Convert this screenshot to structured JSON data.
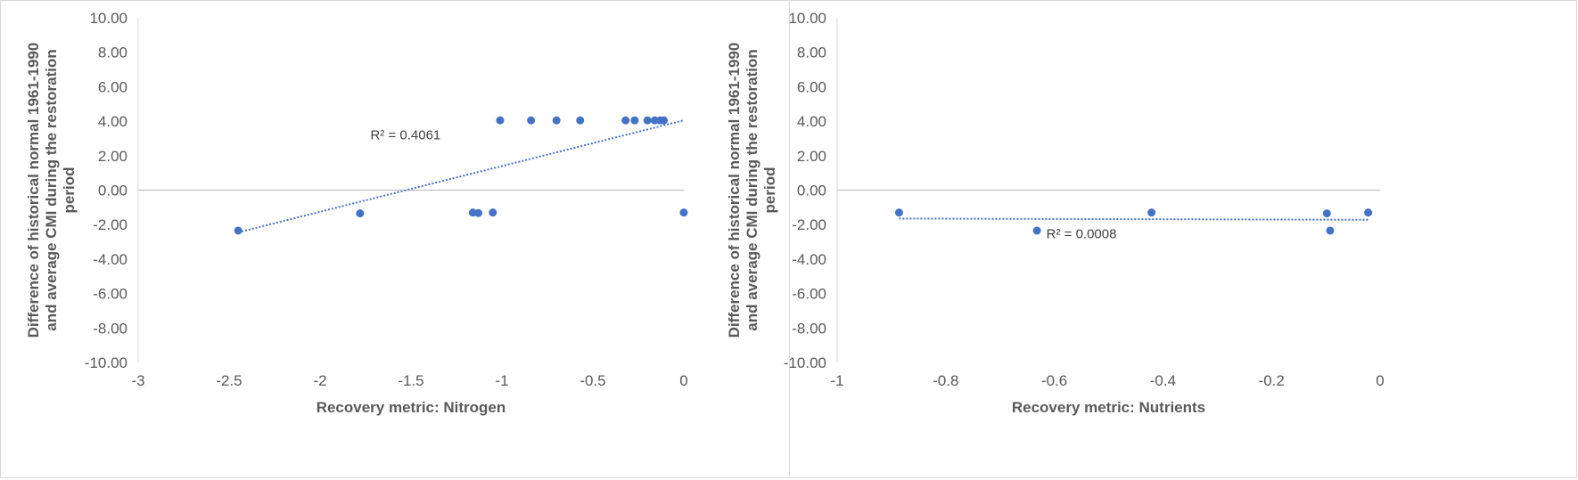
{
  "chart_data": [
    {
      "type": "scatter",
      "xlabel": "Recovery metric: Nitrogen",
      "ylabel_lines": [
        "Difference of historical normal 1961-1990",
        "and average  CMI during the restoration",
        "period"
      ],
      "xlim": [
        -3,
        0
      ],
      "ylim": [
        -10,
        10
      ],
      "x_ticks": [
        "-3",
        "-2.5",
        "-2",
        "-1.5",
        "-1",
        "-0.5",
        "0"
      ],
      "y_ticks": [
        "10.00",
        "8.00",
        "6.00",
        "4.00",
        "2.00",
        "0.00",
        "-2.00",
        "-4.00",
        "-6.00",
        "-8.00",
        "-10.00"
      ],
      "points": [
        {
          "x": -2.45,
          "y": -2.35
        },
        {
          "x": -1.78,
          "y": -1.35
        },
        {
          "x": -1.16,
          "y": -1.3
        },
        {
          "x": -1.13,
          "y": -1.33
        },
        {
          "x": -1.05,
          "y": -1.3
        },
        {
          "x": -1.01,
          "y": 4.05
        },
        {
          "x": -0.84,
          "y": 4.05
        },
        {
          "x": -0.7,
          "y": 4.05
        },
        {
          "x": -0.57,
          "y": 4.05
        },
        {
          "x": -0.32,
          "y": 4.05
        },
        {
          "x": -0.27,
          "y": 4.05
        },
        {
          "x": -0.2,
          "y": 4.05
        },
        {
          "x": -0.16,
          "y": 4.05
        },
        {
          "x": -0.13,
          "y": 4.05
        },
        {
          "x": -0.11,
          "y": 4.05
        },
        {
          "x": 0.0,
          "y": -1.3
        }
      ],
      "trendline": {
        "x1": -2.45,
        "y1": -2.45,
        "x2": 0.0,
        "y2": 4.05
      },
      "r2_label": "R² = 0.4061",
      "r2_pos": {
        "x": -1.53,
        "y": 2.95
      },
      "grid": false,
      "zero_line": true,
      "colors": {
        "points": "#4472c4",
        "trend": "#4472c4",
        "zero": "#bfbfbf"
      }
    },
    {
      "type": "scatter",
      "xlabel": "Recovery metric: Nutrients",
      "ylabel_lines": [
        "Difference of historical normal 1961-1990",
        "and average  CMI during the restoration",
        "period"
      ],
      "xlim": [
        -1,
        0
      ],
      "ylim": [
        -10,
        10
      ],
      "x_ticks": [
        "-1",
        "-0.8",
        "-0.6",
        "-0.4",
        "-0.2",
        "0"
      ],
      "y_ticks": [
        "10.00",
        "8.00",
        "6.00",
        "4.00",
        "2.00",
        "0.00",
        "-2.00",
        "-4.00",
        "-6.00",
        "-8.00",
        "-10.00"
      ],
      "points": [
        {
          "x": -0.886,
          "y": -1.3
        },
        {
          "x": -0.632,
          "y": -2.35
        },
        {
          "x": -0.421,
          "y": -1.3
        },
        {
          "x": -0.098,
          "y": -1.35
        },
        {
          "x": -0.092,
          "y": -2.35
        },
        {
          "x": -0.022,
          "y": -1.3
        }
      ],
      "trendline": {
        "x1": -0.886,
        "y1": -1.65,
        "x2": -0.022,
        "y2": -1.72
      },
      "r2_label": "R² = 0.0008",
      "r2_pos": {
        "x": -0.55,
        "y": -2.8
      },
      "grid": false,
      "zero_line": true,
      "colors": {
        "points": "#4472c4",
        "trend": "#4472c4",
        "zero": "#bfbfbf"
      }
    }
  ]
}
